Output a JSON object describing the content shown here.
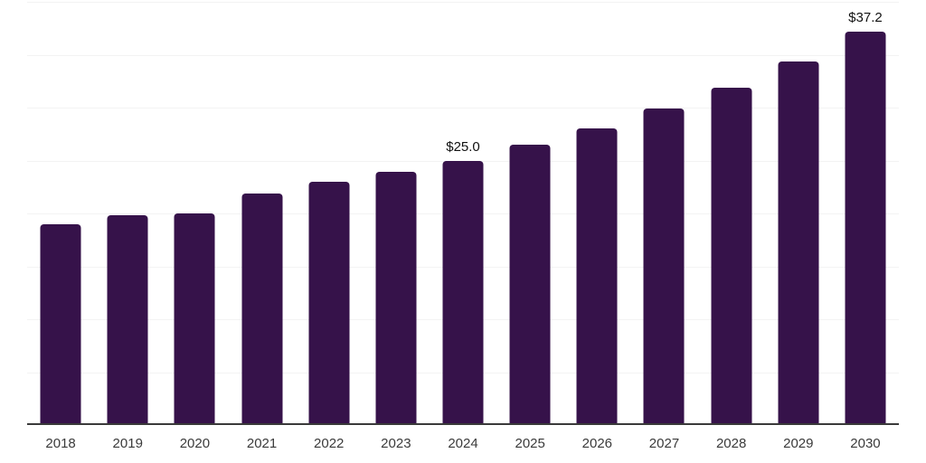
{
  "chart_data": {
    "type": "bar",
    "title": "",
    "xlabel": "",
    "ylabel": "",
    "categories": [
      "2018",
      "2019",
      "2020",
      "2021",
      "2022",
      "2023",
      "2024",
      "2025",
      "2026",
      "2027",
      "2028",
      "2029",
      "2030"
    ],
    "values": [
      19.0,
      19.8,
      20.0,
      21.9,
      23.0,
      23.9,
      25.0,
      26.5,
      28.0,
      29.9,
      31.9,
      34.4,
      37.2
    ],
    "data_labels": {
      "2024": "$25.0",
      "2030": "$37.2"
    },
    "ylim": [
      0,
      40
    ],
    "grid": true,
    "gridline_step": 5,
    "legend": "none",
    "colors": {
      "bar": "#36124A",
      "gridline": "#f3f3f3",
      "axis_line": "#3a3a3a",
      "value_label": "#111111",
      "tick_label": "#3a3a3a",
      "background": "#ffffff"
    }
  }
}
